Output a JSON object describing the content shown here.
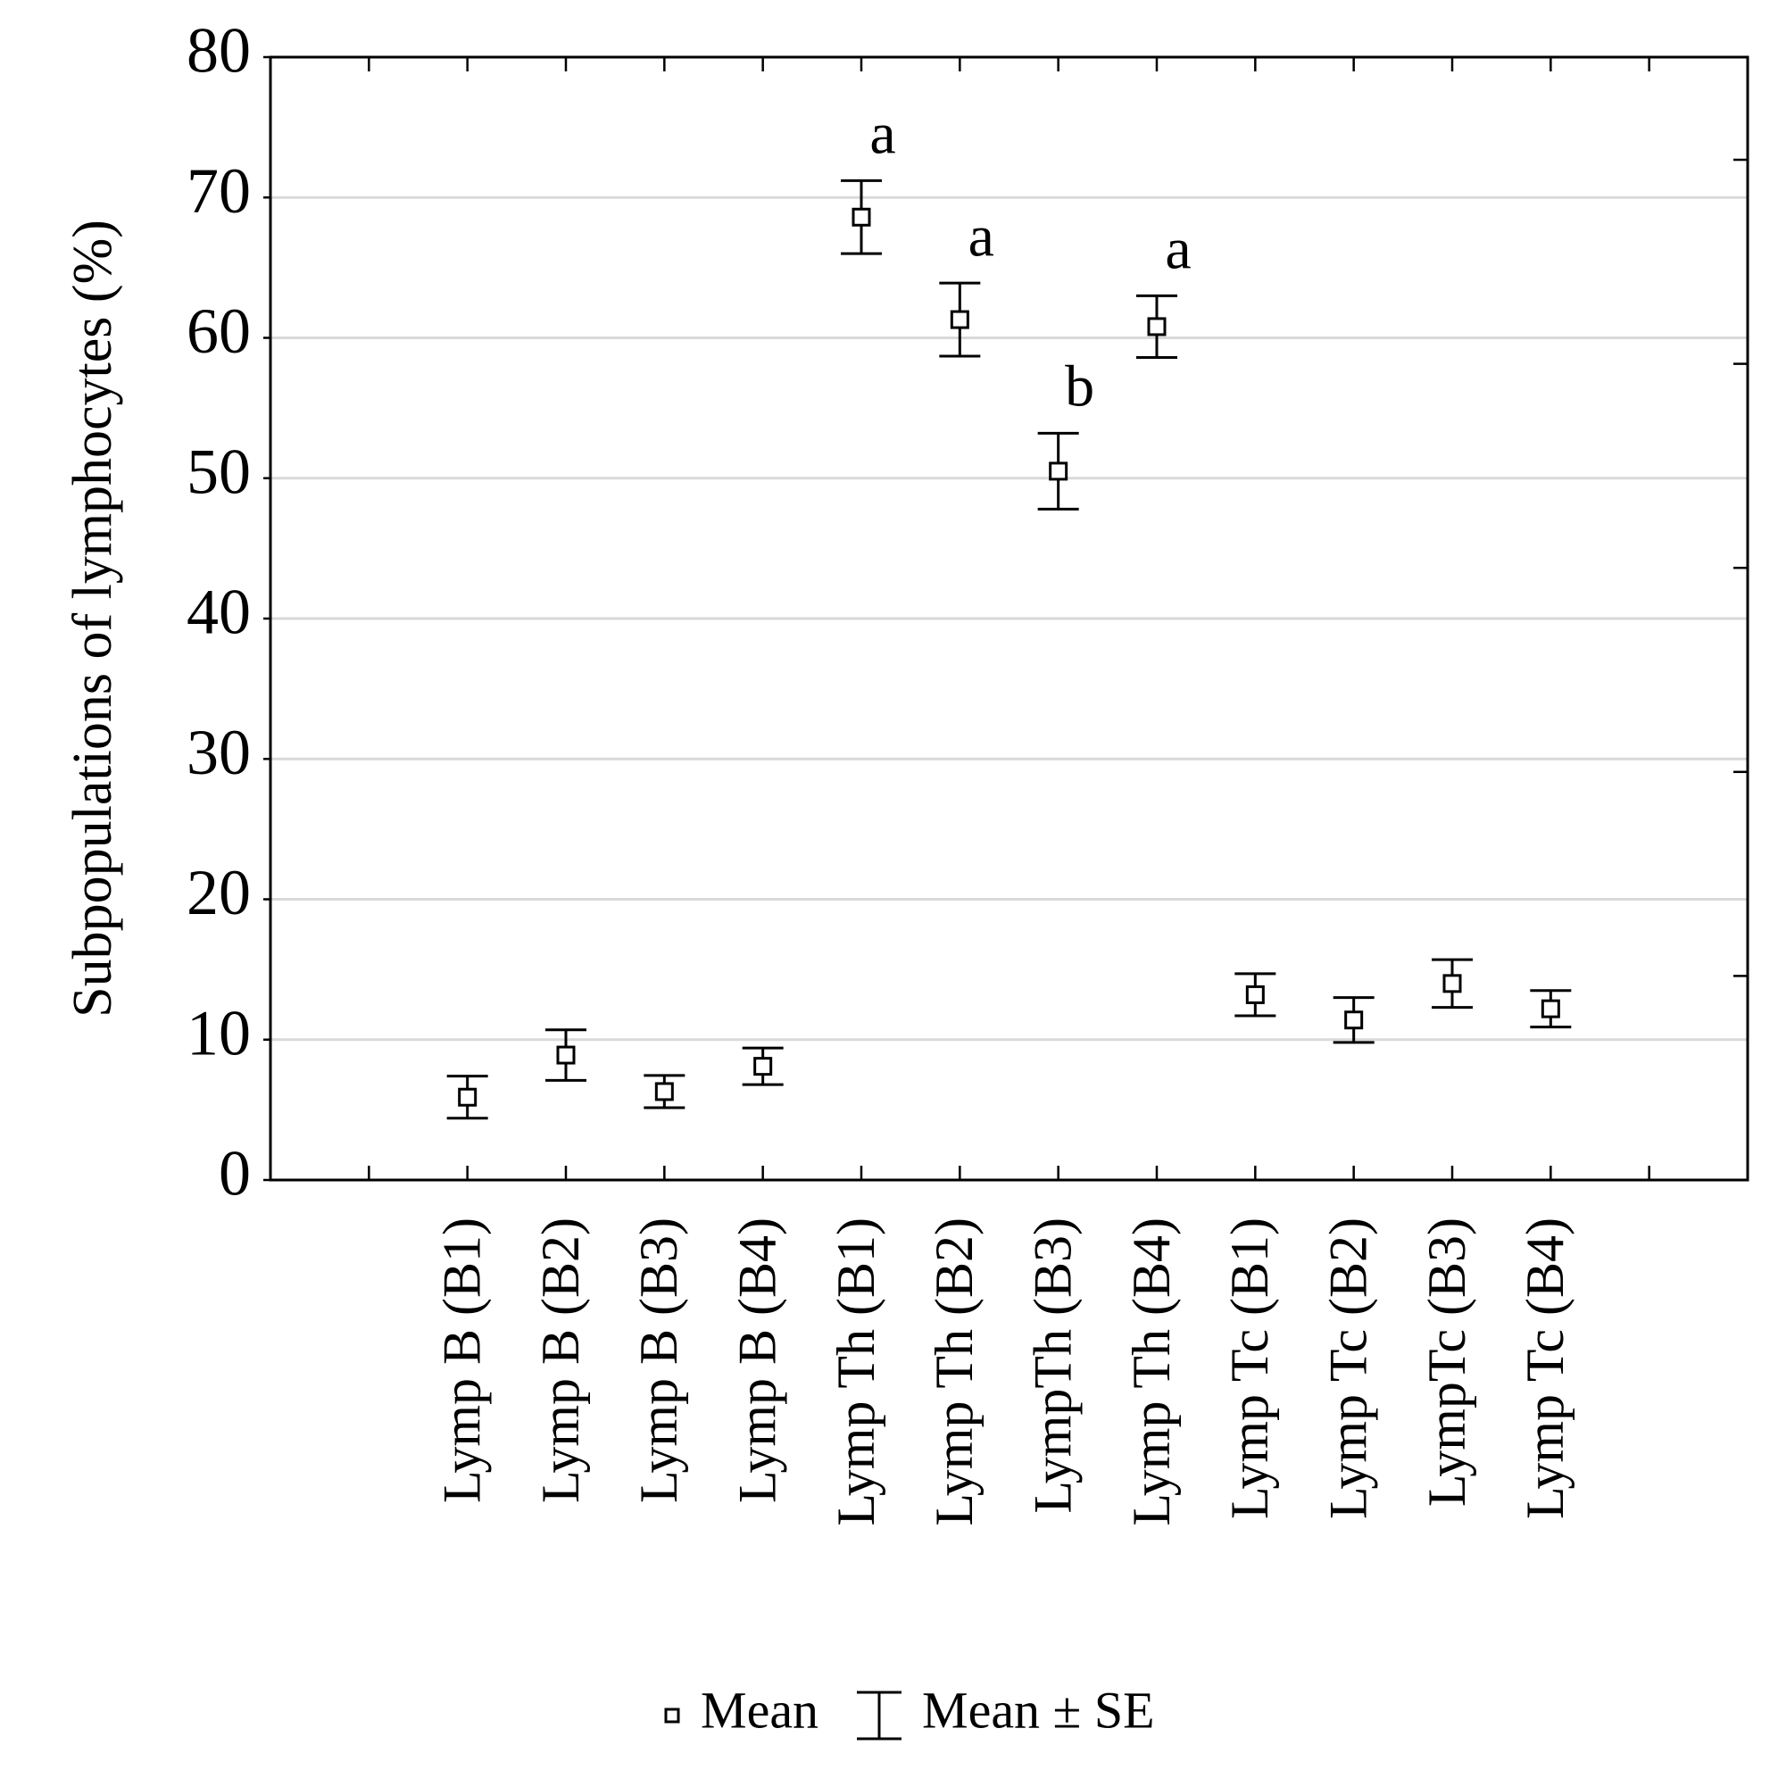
{
  "chart_data": {
    "type": "errorbar",
    "y_label": "Subpopulations of lymphocytes (%)",
    "categories": [
      null,
      "Lymp B (B1)",
      "Lymp B (B2)",
      "Lymp B (B3)",
      "Lymp B (B4)",
      "Lymp Th (B1)",
      "Lymp Th (B2)",
      "LympTh (B3)",
      "Lymp Th (B4)",
      "Lymp Tc (B1)",
      "Lymp Tc (B2)",
      "LympTc (B3)",
      "Lymp Tc (B4)",
      null
    ],
    "series": [
      {
        "name": "Mean",
        "error_name": "Mean ± SE",
        "color": "#000000",
        "values": [
          null,
          5.9,
          8.9,
          6.3,
          8.1,
          68.6,
          61.3,
          50.5,
          60.8,
          13.2,
          11.4,
          14.0,
          12.2,
          null
        ],
        "errors": [
          null,
          1.5,
          1.8,
          1.15,
          1.3,
          2.6,
          2.6,
          2.7,
          2.2,
          1.5,
          1.6,
          1.7,
          1.3,
          null
        ],
        "annotations": [
          null,
          null,
          null,
          null,
          null,
          "a",
          "a",
          "b",
          "a",
          null,
          null,
          null,
          null,
          null
        ]
      }
    ],
    "ylim": [
      0,
      80
    ],
    "yticks": [
      0,
      10,
      20,
      30,
      40,
      50,
      60,
      70,
      80
    ],
    "grid": true,
    "legend": "bottom"
  }
}
